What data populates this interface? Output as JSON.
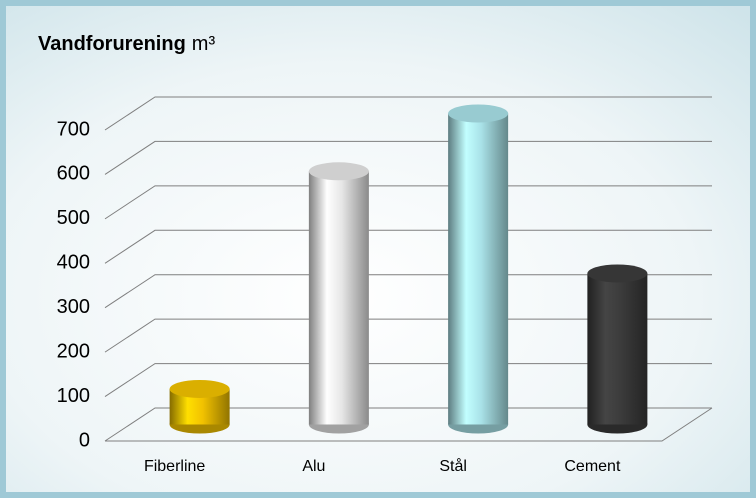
{
  "chart_data": {
    "type": "bar3d",
    "title": "Vandforurening",
    "unit": "m³",
    "categories": [
      "Fiberline",
      "Alu",
      "Stål",
      "Cement"
    ],
    "values": [
      80,
      570,
      700,
      340
    ],
    "colors": [
      "#f2c200",
      "#e6e6e6",
      "#a9e2e8",
      "#3c3c3c"
    ],
    "ylim": [
      0,
      700
    ],
    "yticks": [
      0,
      100,
      200,
      300,
      400,
      500,
      600,
      700
    ],
    "grid": true
  }
}
